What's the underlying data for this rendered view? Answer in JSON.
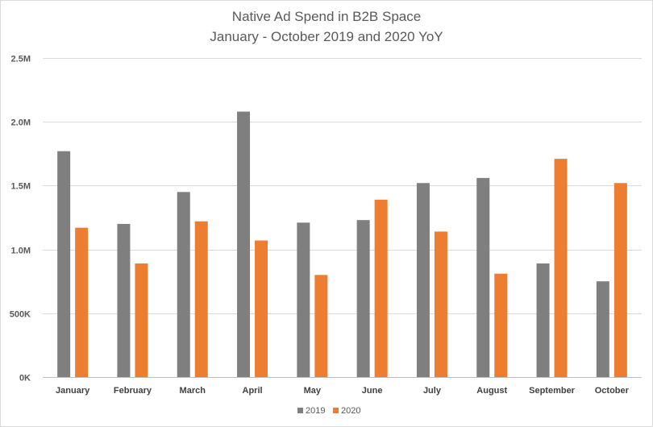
{
  "chart_data": {
    "type": "bar",
    "title": "Native Ad Spend in B2B Space",
    "subtitle": "January - October 2019 and 2020 YoY",
    "categories": [
      "January",
      "February",
      "March",
      "April",
      "May",
      "June",
      "July",
      "August",
      "September",
      "October"
    ],
    "series": [
      {
        "name": "2019",
        "color": "#7f7f7f",
        "values": [
          1770000,
          1200000,
          1450000,
          2080000,
          1210000,
          1230000,
          1520000,
          1560000,
          890000,
          750000
        ]
      },
      {
        "name": "2020",
        "color": "#ed7d31",
        "values": [
          1170000,
          890000,
          1220000,
          1070000,
          800000,
          1390000,
          1140000,
          810000,
          1710000,
          1520000
        ]
      }
    ],
    "ylim": [
      0,
      2500000
    ],
    "yticks": [
      {
        "value": 0,
        "label": "0K"
      },
      {
        "value": 500000,
        "label": "500K"
      },
      {
        "value": 1000000,
        "label": "1.0M"
      },
      {
        "value": 1500000,
        "label": "1.5M"
      },
      {
        "value": 2000000,
        "label": "2.0M"
      },
      {
        "value": 2500000,
        "label": "2.5M"
      }
    ],
    "xlabel": "",
    "ylabel": "",
    "grid": true,
    "legend_position": "bottom"
  }
}
